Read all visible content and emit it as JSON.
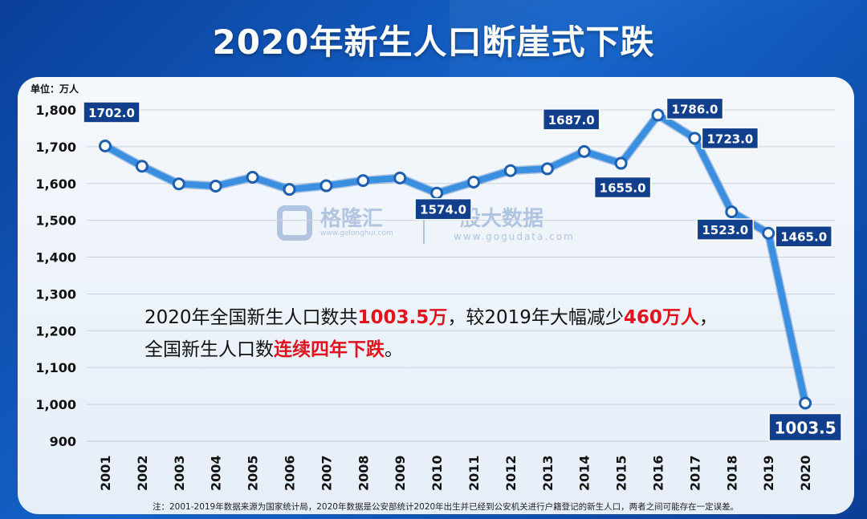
{
  "title": "2020年新生人口断崖式下跌",
  "watermark": {
    "left_text": "格隆汇",
    "left_sub": "www.gelonghui.com",
    "right_text": "股大数据",
    "right_sub": "www.gogudata.com"
  },
  "annotation": {
    "line1_a": "2020年全国新生人口数共",
    "line1_b": "1003.5万",
    "line1_c": "，较2019年大幅减少",
    "line1_d": "460万人",
    "line1_e": "，",
    "line2_a": "全国新生人口数",
    "line2_b": "连续四年下跌",
    "line2_c": "。"
  },
  "footnote": "注：2001-2019年数据来源为国家统计局，2020年数据是公安部统计2020年出生并已经到公安机关进行户籍登记的新生人口，两者之间可能存在一定误差。",
  "colors": {
    "line": "#3a8fe0",
    "label_bg": "#123f8c",
    "annotation_red": "#e0141e"
  },
  "chart_data": {
    "type": "line",
    "unit": "单位：万人",
    "categories": [
      "2001",
      "2002",
      "2003",
      "2004",
      "2005",
      "2006",
      "2007",
      "2008",
      "2009",
      "2010",
      "2011",
      "2012",
      "2013",
      "2014",
      "2015",
      "2016",
      "2017",
      "2018",
      "2019",
      "2020"
    ],
    "values": [
      1702.0,
      1647,
      1599,
      1593,
      1617,
      1584,
      1594,
      1608,
      1615,
      1574.0,
      1604,
      1635,
      1640,
      1687.0,
      1655.0,
      1786.0,
      1723.0,
      1523.0,
      1465.0,
      1003.5
    ],
    "labels": [
      {
        "index": 0,
        "text": "1702.0"
      },
      {
        "index": 9,
        "text": "1574.0"
      },
      {
        "index": 13,
        "text": "1687.0"
      },
      {
        "index": 14,
        "text": "1655.0"
      },
      {
        "index": 15,
        "text": "1786.0"
      },
      {
        "index": 16,
        "text": "1723.0"
      },
      {
        "index": 17,
        "text": "1523.0"
      },
      {
        "index": 18,
        "text": "1465.0"
      },
      {
        "index": 19,
        "text": "1003.5"
      }
    ],
    "yticks": [
      "1,800",
      "1,700",
      "1,600",
      "1,500",
      "1,400",
      "1,300",
      "1,200",
      "1,100",
      "1,000",
      "900"
    ],
    "ylim": [
      900,
      1800
    ],
    "grid": true
  }
}
